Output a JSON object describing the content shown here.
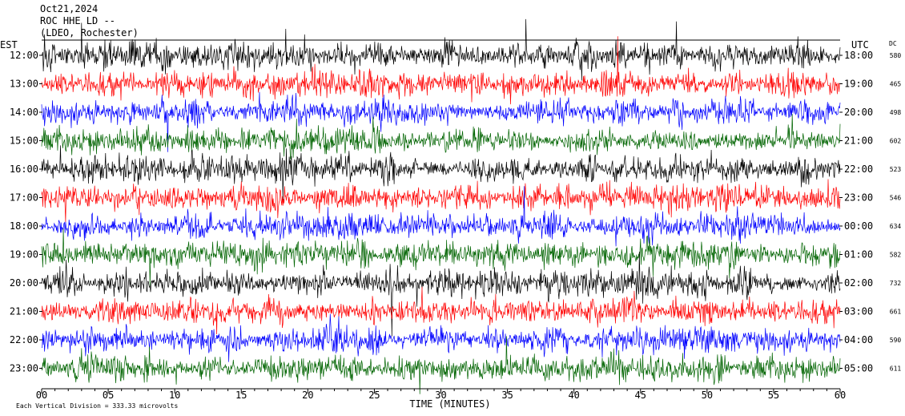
{
  "header": {
    "date": "Oct21,2024",
    "station": "ROC HHE LD --",
    "location": "(LDEO, Rochester)"
  },
  "footer": {
    "note": "Each Vertical Division =  333.33 microvolts"
  },
  "chart_data": {
    "type": "line",
    "title": "",
    "xlabel": "TIME (MINUTES)",
    "left_axis_label": "EST",
    "right_axis_label": "UTC",
    "dc_label": "DC",
    "xlim": [
      0,
      60
    ],
    "x_ticks": [
      "00",
      "05",
      "10",
      "15",
      "20",
      "25",
      "30",
      "35",
      "40",
      "45",
      "50",
      "55",
      "60"
    ],
    "grid": false,
    "colors": [
      "#000000",
      "#ff0000",
      "#0000ff",
      "#006400"
    ],
    "rows": [
      {
        "est": "12:00",
        "utc": "18:00",
        "dc": "580",
        "color": "#000000"
      },
      {
        "est": "13:00",
        "utc": "19:00",
        "dc": "465",
        "color": "#ff0000"
      },
      {
        "est": "14:00",
        "utc": "20:00",
        "dc": "498",
        "color": "#0000ff"
      },
      {
        "est": "15:00",
        "utc": "21:00",
        "dc": "602",
        "color": "#006400"
      },
      {
        "est": "16:00",
        "utc": "22:00",
        "dc": "523",
        "color": "#000000"
      },
      {
        "est": "17:00",
        "utc": "23:00",
        "dc": "546",
        "color": "#ff0000"
      },
      {
        "est": "18:00",
        "utc": "00:00",
        "dc": "634",
        "color": "#0000ff"
      },
      {
        "est": "19:00",
        "utc": "01:00",
        "dc": "582",
        "color": "#006400"
      },
      {
        "est": "20:00",
        "utc": "02:00",
        "dc": "732",
        "color": "#000000"
      },
      {
        "est": "21:00",
        "utc": "03:00",
        "dc": "661",
        "color": "#ff0000"
      },
      {
        "est": "22:00",
        "utc": "04:00",
        "dc": "590",
        "color": "#0000ff"
      },
      {
        "est": "23:00",
        "utc": "05:00",
        "dc": "611",
        "color": "#006400"
      }
    ]
  }
}
